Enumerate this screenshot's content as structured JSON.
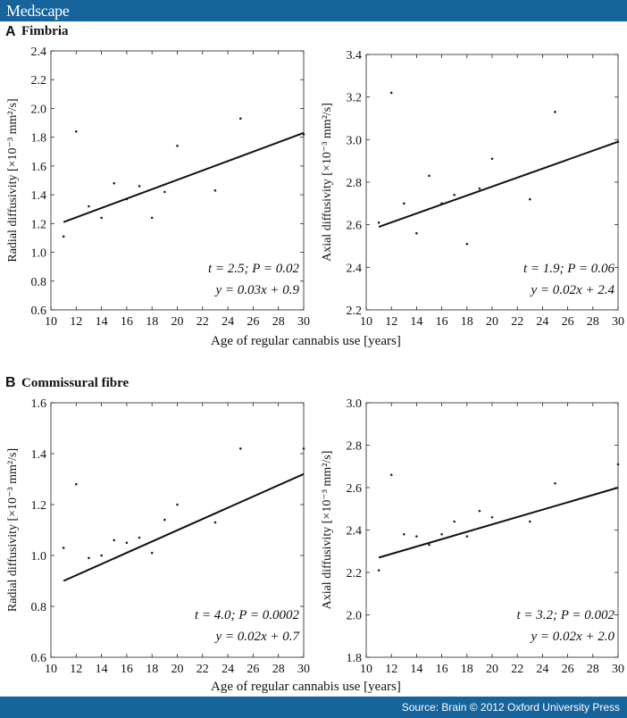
{
  "header": {
    "brand": "Medscape"
  },
  "footer": {
    "source": "Source: Brain © 2012 Oxford University Press"
  },
  "panels": [
    {
      "letter": "A",
      "title": "Fimbria",
      "xlabel": "Age of regular cannabis use [years]"
    },
    {
      "letter": "B",
      "title": "Commissural fibre",
      "xlabel": "Age of regular cannabis use [years]"
    }
  ],
  "chart_data": [
    {
      "type": "scatter",
      "panel": "A",
      "ylabel": "Radial diffusivity [×10⁻³ mm²/s]",
      "xlim": [
        10,
        30
      ],
      "ylim": [
        0.6,
        2.4
      ],
      "xticks": [
        "10",
        "12",
        "14",
        "16",
        "18",
        "20",
        "22",
        "24",
        "26",
        "28",
        "30"
      ],
      "yticks": [
        "0.6",
        "0.8",
        "1.0",
        "1.2",
        "1.4",
        "1.6",
        "1.8",
        "2.0",
        "2.2",
        "2.4"
      ],
      "points": {
        "x": [
          11,
          12,
          13,
          14,
          15,
          16,
          17,
          18,
          19,
          20,
          23,
          25,
          30
        ],
        "y": [
          1.11,
          1.84,
          1.32,
          1.24,
          1.48,
          1.37,
          1.46,
          1.24,
          1.42,
          1.74,
          1.43,
          1.93,
          1.82
        ]
      },
      "fit": {
        "x": [
          11,
          30
        ],
        "y": [
          1.21,
          1.83
        ]
      },
      "annotation": [
        "t = 2.5; P = 0.02",
        "y = 0.03x + 0.9"
      ]
    },
    {
      "type": "scatter",
      "panel": "A",
      "ylabel": "Axial diffusivity [×10⁻³ mm²/s]",
      "xlim": [
        10,
        30
      ],
      "ylim": [
        2.2,
        3.4
      ],
      "xticks": [
        "10",
        "12",
        "14",
        "16",
        "18",
        "20",
        "22",
        "24",
        "26",
        "28",
        "30"
      ],
      "yticks": [
        "2.2",
        "2.4",
        "2.6",
        "2.8",
        "3.0",
        "3.2",
        "3.4"
      ],
      "points": {
        "x": [
          11,
          12,
          13,
          14,
          15,
          16,
          17,
          18,
          19,
          20,
          23,
          25,
          30
        ],
        "y": [
          2.61,
          3.22,
          2.7,
          2.56,
          2.83,
          2.7,
          2.74,
          2.51,
          2.77,
          2.91,
          2.72,
          3.13,
          2.99
        ]
      },
      "fit": {
        "x": [
          11,
          30
        ],
        "y": [
          2.59,
          2.99
        ]
      },
      "annotation": [
        "t = 1.9; P = 0.06",
        "y = 0.02x + 2.4"
      ]
    },
    {
      "type": "scatter",
      "panel": "B",
      "ylabel": "Radial diffusivity [×10⁻³ mm²/s]",
      "xlim": [
        10,
        30
      ],
      "ylim": [
        0.6,
        1.6
      ],
      "xticks": [
        "10",
        "12",
        "14",
        "16",
        "18",
        "20",
        "22",
        "24",
        "26",
        "28",
        "30"
      ],
      "yticks": [
        "0.6",
        "0.8",
        "1.0",
        "1.2",
        "1.4",
        "1.6"
      ],
      "points": {
        "x": [
          11,
          12,
          13,
          14,
          15,
          16,
          17,
          18,
          19,
          20,
          23,
          25,
          30
        ],
        "y": [
          1.03,
          1.28,
          0.99,
          1.0,
          1.06,
          1.05,
          1.07,
          1.01,
          1.14,
          1.2,
          1.13,
          1.42,
          1.42
        ]
      },
      "fit": {
        "x": [
          11,
          30
        ],
        "y": [
          0.9,
          1.32
        ]
      },
      "annotation": [
        "t = 4.0; P = 0.0002",
        "y = 0.02x + 0.7"
      ]
    },
    {
      "type": "scatter",
      "panel": "B",
      "ylabel": "Axial diffusivity [×10⁻³ mm²/s]",
      "xlim": [
        10,
        30
      ],
      "ylim": [
        1.8,
        3.0
      ],
      "xticks": [
        "10",
        "12",
        "14",
        "16",
        "18",
        "20",
        "22",
        "24",
        "26",
        "28",
        "30"
      ],
      "yticks": [
        "1.8",
        "2.0",
        "2.2",
        "2.4",
        "2.6",
        "2.8",
        "3.0"
      ],
      "points": {
        "x": [
          11,
          12,
          13,
          14,
          15,
          16,
          17,
          18,
          19,
          20,
          23,
          25,
          30
        ],
        "y": [
          2.21,
          2.66,
          2.38,
          2.37,
          2.33,
          2.38,
          2.44,
          2.37,
          2.49,
          2.46,
          2.44,
          2.62,
          2.71
        ]
      },
      "fit": {
        "x": [
          11,
          30
        ],
        "y": [
          2.27,
          2.6
        ]
      },
      "annotation": [
        "t = 3.2; P = 0.002",
        "y = 0.02x + 2.0"
      ]
    }
  ]
}
